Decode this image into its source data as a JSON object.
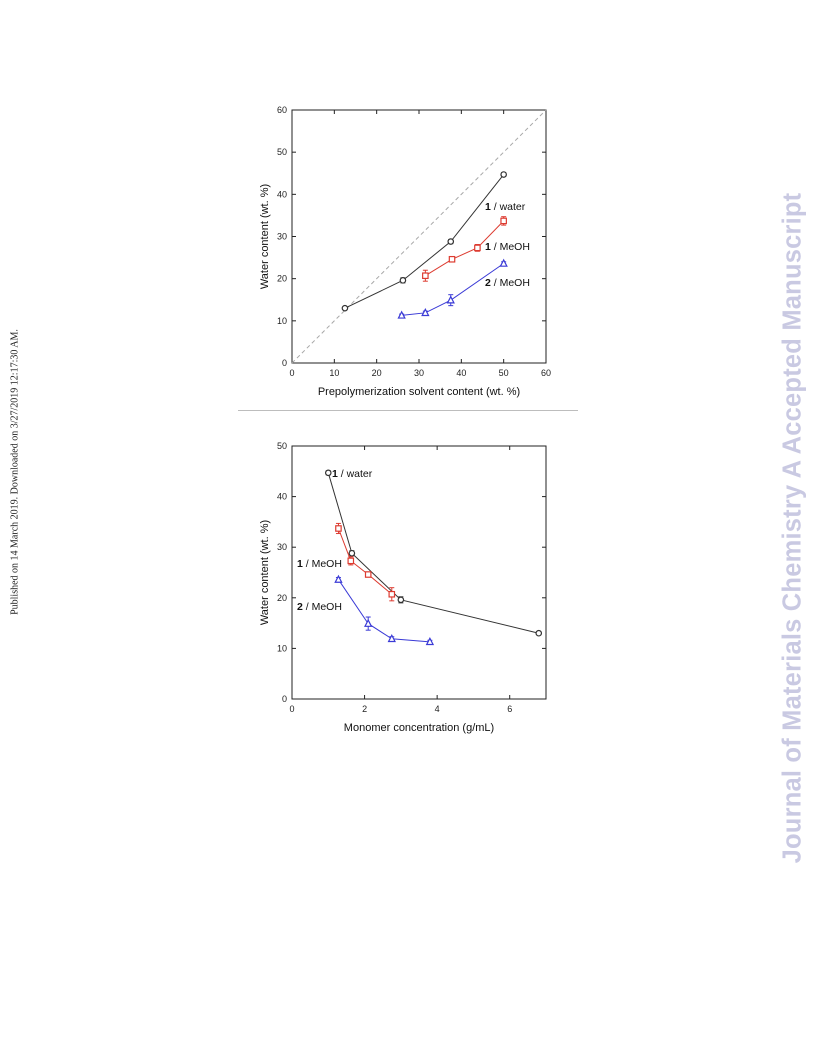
{
  "page": {
    "side_note": "Published on 14 March 2019. Downloaded on 3/27/2019 12:17:30 AM.",
    "watermark": "Journal of Materials Chemistry A Accepted Manuscript"
  },
  "colors": {
    "water": "#333333",
    "meoh1": "#dd3b30",
    "meoh2": "#3a3ad6",
    "diagonal": "#a8a8a8"
  },
  "chart_data": [
    {
      "type": "line",
      "xlabel": "Prepolymerization solvent content (wt. %)",
      "ylabel": "Water content (wt. %)",
      "xlim": [
        0,
        60
      ],
      "ylim": [
        0,
        60
      ],
      "xticks": [
        0,
        10,
        20,
        30,
        40,
        50,
        60
      ],
      "yticks": [
        0,
        10,
        20,
        30,
        40,
        50,
        60
      ],
      "reference_line": {
        "style": "dashed",
        "x": [
          0,
          60
        ],
        "y": [
          0,
          60
        ]
      },
      "series": [
        {
          "name": "1 / water",
          "name_bold": "1",
          "name_rest": " / water",
          "marker": "circle",
          "color": "#333333",
          "x": [
            12.5,
            26.2,
            37.5,
            50.0
          ],
          "y": [
            13.0,
            19.6,
            28.8,
            44.7
          ],
          "err": [
            0.3,
            0.6,
            0.5,
            0.4
          ]
        },
        {
          "name": "1 / MeOH",
          "name_bold": "1",
          "name_rest": " / MeOH",
          "marker": "square",
          "color": "#dd3b30",
          "x": [
            31.5,
            37.8,
            43.8,
            50.0
          ],
          "y": [
            20.7,
            24.6,
            27.3,
            33.7
          ],
          "err": [
            1.3,
            0.4,
            0.8,
            1.0
          ]
        },
        {
          "name": "2 / MeOH",
          "name_bold": "2",
          "name_rest": " / MeOH",
          "marker": "triangle",
          "color": "#3a3ad6",
          "x": [
            25.9,
            31.5,
            37.5,
            50.0
          ],
          "y": [
            11.3,
            11.9,
            14.9,
            23.6
          ],
          "err": [
            0.3,
            0.4,
            1.3,
            0.4
          ]
        }
      ]
    },
    {
      "type": "line",
      "xlabel": "Monomer concentration (g/mL)",
      "ylabel": "Water content (wt. %)",
      "xlim": [
        0,
        7
      ],
      "ylim": [
        0,
        50
      ],
      "xticks": [
        0,
        2,
        4,
        6
      ],
      "yticks": [
        0,
        10,
        20,
        30,
        40,
        50
      ],
      "series": [
        {
          "name": "1 / water",
          "name_bold": "1",
          "name_rest": " / water",
          "marker": "circle",
          "color": "#333333",
          "x": [
            1.0,
            1.65,
            3.0,
            6.8
          ],
          "y": [
            44.7,
            28.8,
            19.6,
            13.0
          ],
          "err": [
            0.4,
            0.5,
            0.6,
            0.3
          ]
        },
        {
          "name": "1 / MeOH",
          "name_bold": "1",
          "name_rest": " / MeOH",
          "marker": "square",
          "color": "#dd3b30",
          "x": [
            1.28,
            1.62,
            2.1,
            2.75
          ],
          "y": [
            33.7,
            27.3,
            24.6,
            20.7
          ],
          "err": [
            1.0,
            0.8,
            0.4,
            1.3
          ]
        },
        {
          "name": "2 / MeOH",
          "name_bold": "2",
          "name_rest": " / MeOH",
          "marker": "triangle",
          "color": "#3a3ad6",
          "x": [
            1.28,
            2.1,
            2.75,
            3.8
          ],
          "y": [
            23.6,
            14.9,
            11.9,
            11.3
          ],
          "err": [
            0.4,
            1.3,
            0.4,
            0.3
          ]
        }
      ]
    }
  ]
}
